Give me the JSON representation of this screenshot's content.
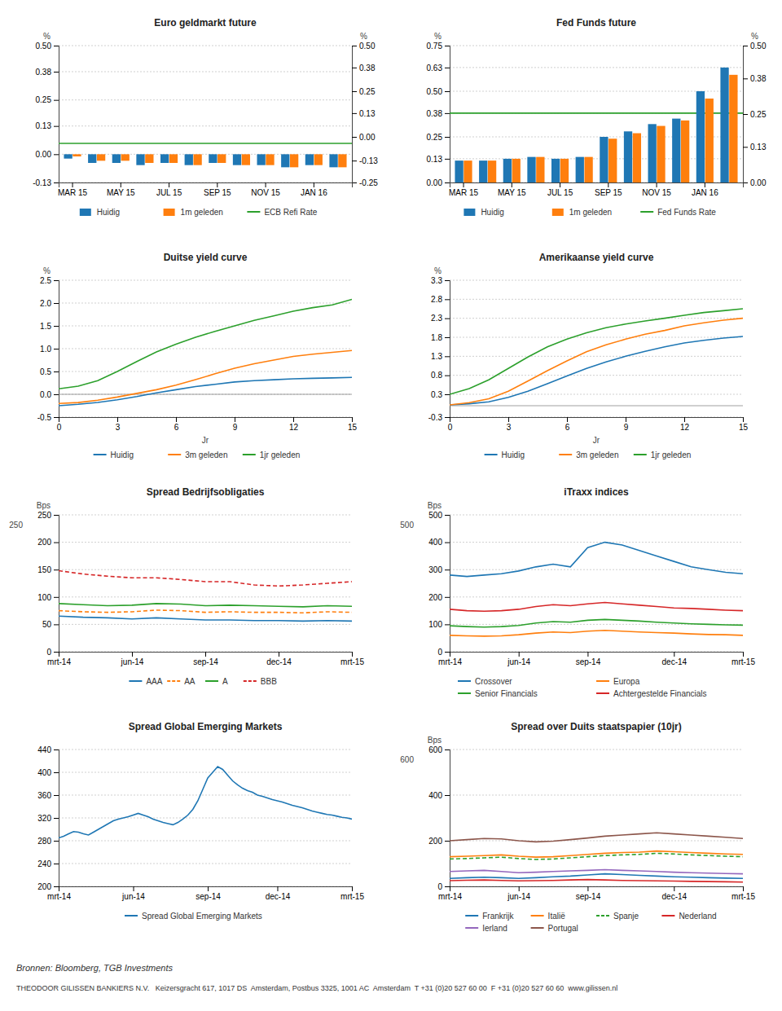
{
  "chart_data": [
    {
      "type": "bar",
      "title": "Euro geldmarkt future",
      "categories": [
        "MAR 15",
        null,
        "MAY 15",
        null,
        "JUL 15",
        null,
        "SEP 15",
        null,
        "NOV 15",
        null,
        "JAN 16",
        null
      ],
      "series": [
        {
          "name": "Huidig",
          "values": [
            -0.02,
            -0.04,
            -0.04,
            -0.05,
            -0.04,
            -0.05,
            -0.04,
            -0.05,
            -0.05,
            -0.06,
            -0.05,
            -0.06
          ]
        },
        {
          "name": "1m geleden",
          "values": [
            -0.01,
            -0.03,
            -0.03,
            -0.04,
            -0.04,
            -0.05,
            -0.04,
            -0.05,
            -0.05,
            -0.06,
            -0.05,
            -0.06
          ]
        }
      ],
      "reference_line": {
        "name": "ECB Refi Rate",
        "value": 0.05
      },
      "ylim": [
        -0.13,
        0.5
      ],
      "yticks": [
        -0.13,
        {
          "value": 0.0,
          "label": "0.00"
        },
        0.13,
        0.25,
        0.38,
        {
          "value": 0.5,
          "label": "0.50"
        }
      ],
      "y2lim": [
        -0.25,
        0.5
      ],
      "y2ticks": [
        -0.25,
        -0.13,
        {
          "value": 0.0,
          "label": "0.00"
        },
        0.13,
        0.25,
        0.38,
        {
          "value": 0.5,
          "label": "0.50"
        }
      ],
      "ylabel": "%",
      "y2label": "%",
      "grid": true,
      "legend": "bottom"
    },
    {
      "type": "bar",
      "title": "Fed Funds future",
      "categories": [
        "MAR 15",
        null,
        "MAY 15",
        null,
        "JUL 15",
        null,
        "SEP 15",
        null,
        "NOV 15",
        null,
        "JAN 16",
        null
      ],
      "series": [
        {
          "name": "Huidig",
          "values": [
            0.12,
            0.12,
            0.13,
            0.14,
            0.13,
            0.14,
            0.25,
            0.28,
            0.32,
            0.35,
            0.5,
            0.63
          ]
        },
        {
          "name": "1m geleden",
          "values": [
            0.12,
            0.12,
            0.13,
            0.14,
            0.13,
            0.14,
            0.24,
            0.27,
            0.31,
            0.34,
            0.46,
            0.59
          ]
        }
      ],
      "reference_line": {
        "name": "Fed Funds Rate",
        "value": 0.38
      },
      "ylim": [
        0.0,
        0.75
      ],
      "yticks": [
        {
          "value": 0.0,
          "label": "0.00"
        },
        0.13,
        0.25,
        0.38,
        {
          "value": 0.5,
          "label": "0.50"
        },
        0.63,
        0.75
      ],
      "y2lim": [
        0.0,
        0.5
      ],
      "y2ticks": [
        {
          "value": 0.0,
          "label": "0.00"
        },
        0.13,
        0.25,
        0.38,
        {
          "value": 0.5,
          "label": "0.50"
        }
      ],
      "ylabel": "%",
      "y2label": "%",
      "grid": true,
      "legend": "bottom"
    },
    {
      "type": "line",
      "title": "Duitse yield curve",
      "x": [
        0,
        1,
        2,
        3,
        4,
        5,
        6,
        7,
        8,
        9,
        10,
        11,
        12,
        13,
        14,
        15
      ],
      "xlim": [
        0,
        15
      ],
      "xticks": [
        0,
        3,
        6,
        9,
        12,
        15
      ],
      "xlabel": "Jr",
      "series": [
        {
          "name": "Huidig",
          "values": [
            -0.25,
            -0.22,
            -0.18,
            -0.12,
            -0.05,
            0.03,
            0.1,
            0.17,
            0.22,
            0.27,
            0.3,
            0.32,
            0.34,
            0.35,
            0.36,
            0.37
          ]
        },
        {
          "name": "3m geleden",
          "values": [
            -0.2,
            -0.18,
            -0.13,
            -0.06,
            0.02,
            0.1,
            0.2,
            0.32,
            0.45,
            0.57,
            0.67,
            0.75,
            0.83,
            0.88,
            0.92,
            0.96
          ]
        },
        {
          "name": "1jr geleden",
          "values": [
            0.12,
            0.18,
            0.3,
            0.5,
            0.72,
            0.93,
            1.1,
            1.25,
            1.38,
            1.5,
            1.62,
            1.72,
            1.82,
            1.9,
            1.96,
            2.08
          ]
        }
      ],
      "reference_line": {
        "value": 0
      },
      "ylim": [
        -0.5,
        2.5
      ],
      "yticks": [
        -0.5,
        {
          "value": 0.0,
          "label": "0.0"
        },
        0.5,
        {
          "value": 1.0,
          "label": "1.0"
        },
        1.5,
        {
          "value": 2.0,
          "label": "2.0"
        },
        2.5
      ],
      "ylabel": "%",
      "grid": true,
      "legend": "bottom"
    },
    {
      "type": "line",
      "title": "Amerikaanse yield curve",
      "x": [
        0,
        1,
        2,
        3,
        4,
        5,
        6,
        7,
        8,
        9,
        10,
        11,
        12,
        13,
        14,
        15
      ],
      "xlim": [
        0,
        15
      ],
      "xticks": [
        0,
        3,
        6,
        9,
        12,
        15
      ],
      "xlabel": "Jr",
      "series": [
        {
          "name": "Huidig",
          "values": [
            0.02,
            0.05,
            0.1,
            0.22,
            0.38,
            0.58,
            0.78,
            0.98,
            1.15,
            1.3,
            1.43,
            1.55,
            1.65,
            1.72,
            1.78,
            1.82
          ]
        },
        {
          "name": "3m geleden",
          "values": [
            0.02,
            0.08,
            0.18,
            0.38,
            0.65,
            0.92,
            1.18,
            1.42,
            1.6,
            1.75,
            1.88,
            1.98,
            2.1,
            2.18,
            2.25,
            2.3
          ]
        },
        {
          "name": "1jr geleden",
          "values": [
            0.3,
            0.45,
            0.68,
            0.98,
            1.28,
            1.55,
            1.75,
            1.92,
            2.05,
            2.15,
            2.23,
            2.3,
            2.38,
            2.45,
            2.5,
            2.55
          ]
        }
      ],
      "reference_line": {
        "value": 0
      },
      "ylim": [
        -0.3,
        3.3
      ],
      "yticks": [
        -0.3,
        0.3,
        0.8,
        1.3,
        1.8,
        2.3,
        2.8,
        3.3
      ],
      "ylabel": "%",
      "grid": true,
      "legend": "bottom"
    },
    {
      "type": "line",
      "title": "Spread Bedrijfsobligaties",
      "categories": [
        "mrt-14",
        null,
        null,
        "jun-14",
        null,
        null,
        "sep-14",
        null,
        null,
        "dec-14",
        null,
        null,
        "mrt-15"
      ],
      "series": [
        {
          "name": "AAA",
          "values": [
            65,
            63,
            62,
            60,
            62,
            60,
            58,
            58,
            57,
            57,
            56,
            57,
            56
          ]
        },
        {
          "name": "AA",
          "line_style": "dashed",
          "values": [
            75,
            73,
            72,
            73,
            76,
            75,
            72,
            73,
            72,
            72,
            71,
            73,
            72
          ]
        },
        {
          "name": "A",
          "values": [
            88,
            86,
            84,
            85,
            88,
            87,
            84,
            85,
            84,
            83,
            82,
            84,
            83
          ]
        },
        {
          "name": "BBB",
          "line_style": "dashed",
          "values": [
            148,
            142,
            138,
            135,
            135,
            132,
            128,
            128,
            122,
            120,
            122,
            125,
            128
          ]
        }
      ],
      "ylim": [
        0,
        250
      ],
      "yticks": [
        0,
        50,
        100,
        150,
        200,
        250
      ],
      "ylabel": "Bps",
      "annotations": [
        "250"
      ],
      "grid": true,
      "legend": "bottom"
    },
    {
      "type": "line",
      "title": "iTraxx indices",
      "categories": [
        "mrt-14",
        null,
        null,
        null,
        "jun-14",
        null,
        null,
        null,
        "sep-14",
        null,
        null,
        null,
        null,
        "dec-14",
        null,
        null,
        null,
        "mrt-15"
      ],
      "series": [
        {
          "name": "Crossover",
          "values": [
            280,
            275,
            280,
            285,
            295,
            310,
            320,
            310,
            380,
            400,
            390,
            370,
            350,
            330,
            310,
            300,
            290,
            285
          ]
        },
        {
          "name": "Europa",
          "values": [
            60,
            58,
            57,
            58,
            62,
            68,
            72,
            70,
            75,
            78,
            75,
            72,
            70,
            68,
            65,
            63,
            62,
            60
          ]
        },
        {
          "name": "Senior Financials",
          "values": [
            95,
            92,
            90,
            92,
            96,
            105,
            110,
            108,
            115,
            118,
            115,
            112,
            108,
            105,
            102,
            100,
            98,
            97
          ]
        },
        {
          "name": "Achtergestelde Financials",
          "values": [
            155,
            150,
            148,
            150,
            155,
            165,
            172,
            168,
            175,
            180,
            175,
            170,
            165,
            160,
            158,
            155,
            152,
            150
          ]
        }
      ],
      "ylim": [
        0,
        500
      ],
      "yticks": [
        0,
        100,
        200,
        300,
        400,
        500
      ],
      "ylabel": "Bps",
      "annotations": [
        "500"
      ],
      "grid": true,
      "legend": "bottom"
    },
    {
      "type": "line",
      "title": "Spread Global Emerging Markets",
      "categories": [
        "mrt-14",
        null,
        null,
        null,
        null,
        null,
        null,
        null,
        null,
        null,
        null,
        null,
        null,
        null,
        null,
        "jun-14",
        null,
        null,
        null,
        null,
        null,
        null,
        null,
        null,
        null,
        null,
        null,
        null,
        null,
        null,
        "sep-14",
        null,
        null,
        null,
        null,
        null,
        null,
        null,
        null,
        null,
        null,
        null,
        null,
        null,
        "dec-14",
        null,
        null,
        null,
        null,
        null,
        null,
        null,
        null,
        null,
        null,
        null,
        null,
        null,
        null,
        "mrt-15"
      ],
      "series": [
        {
          "name": "Spread Global Emerging Markets",
          "values": [
            285,
            288,
            292,
            296,
            295,
            292,
            290,
            295,
            300,
            305,
            310,
            315,
            318,
            320,
            322,
            325,
            328,
            325,
            322,
            318,
            315,
            312,
            310,
            308,
            312,
            318,
            325,
            335,
            350,
            370,
            390,
            400,
            410,
            405,
            395,
            385,
            378,
            372,
            368,
            365,
            360,
            358,
            355,
            352,
            350,
            348,
            345,
            342,
            340,
            338,
            335,
            332,
            330,
            328,
            326,
            325,
            323,
            321,
            320,
            318
          ]
        }
      ],
      "ylim": [
        200,
        440
      ],
      "yticks": [
        200,
        240,
        280,
        320,
        360,
        400,
        440
      ],
      "grid": true,
      "legend": "bottom"
    },
    {
      "type": "line",
      "title": "Spread over Duits staatspapier (10jr)",
      "categories": [
        "mrt-14",
        null,
        null,
        null,
        "jun-14",
        null,
        null,
        null,
        "sep-14",
        null,
        null,
        null,
        null,
        "dec-14",
        null,
        null,
        null,
        "mrt-15"
      ],
      "series": [
        {
          "name": "Frankrijk",
          "values": [
            35,
            38,
            40,
            38,
            35,
            38,
            42,
            45,
            50,
            55,
            52,
            48,
            45,
            42,
            40,
            38,
            36,
            35
          ]
        },
        {
          "name": "Italië",
          "values": [
            130,
            132,
            135,
            138,
            132,
            128,
            130,
            135,
            140,
            145,
            148,
            150,
            155,
            152,
            148,
            145,
            142,
            140
          ]
        },
        {
          "name": "Spanje",
          "line_style": "dashed",
          "values": [
            120,
            122,
            125,
            128,
            122,
            118,
            120,
            125,
            130,
            135,
            138,
            140,
            145,
            142,
            138,
            135,
            132,
            130
          ]
        },
        {
          "name": "Nederland",
          "values": [
            25,
            27,
            28,
            26,
            24,
            25,
            26,
            28,
            30,
            28,
            26,
            25,
            24,
            23,
            22,
            21,
            20,
            19
          ]
        },
        {
          "name": "Ierland",
          "values": [
            65,
            68,
            70,
            65,
            60,
            62,
            65,
            68,
            70,
            73,
            70,
            68,
            65,
            62,
            60,
            58,
            56,
            55
          ]
        },
        {
          "name": "Portugal",
          "values": [
            200,
            205,
            210,
            208,
            200,
            195,
            198,
            205,
            212,
            220,
            225,
            230,
            235,
            230,
            225,
            220,
            215,
            210
          ]
        }
      ],
      "ylim": [
        0,
        600
      ],
      "yticks": [
        0,
        200,
        400,
        600
      ],
      "ylabel": "Bps",
      "annotations": [
        "600"
      ],
      "grid": true,
      "legend": "bottom"
    }
  ],
  "annotations": [
    "Bronnen: Bloomberg, TGB Investments",
    "THEODOOR GILISSEN BANKIERS N.V.   Keizersgracht 617, 1017 DS  Amsterdam, Postbus 3325, 1001 AC  Amsterdam  T +31 (0)20 527 60 00  F +31 (0)20 527 60 60  www.gilissen.nl"
  ]
}
